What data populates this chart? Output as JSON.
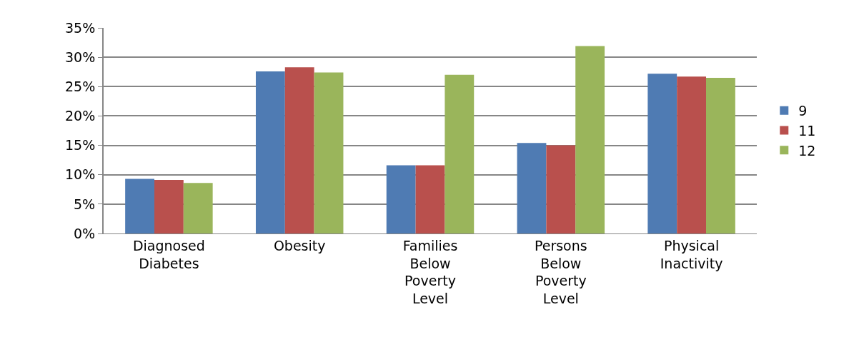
{
  "chart_data": {
    "type": "bar",
    "categories": [
      "Diagnosed Diabetes",
      "Obesity",
      "Families Below Poverty Level",
      "Persons Below Poverty Level",
      "Physical Inactivity"
    ],
    "series": [
      {
        "name": "9",
        "color": "#4f7bb3",
        "values": [
          9.3,
          27.6,
          11.6,
          15.4,
          27.2
        ]
      },
      {
        "name": "11",
        "color": "#b9504d",
        "values": [
          9.1,
          28.3,
          11.6,
          15.0,
          26.7
        ]
      },
      {
        "name": "12",
        "color": "#9ab55b",
        "values": [
          8.6,
          27.4,
          27.0,
          31.9,
          26.5
        ]
      }
    ],
    "ylim": [
      0,
      35
    ],
    "yticks": [
      {
        "value": 0,
        "label": "0%"
      },
      {
        "value": 5,
        "label": "5%"
      },
      {
        "value": 10,
        "label": "10%"
      },
      {
        "value": 15,
        "label": "15%"
      },
      {
        "value": 20,
        "label": "20%"
      },
      {
        "value": 25,
        "label": "25%"
      },
      {
        "value": 30,
        "label": "30%"
      },
      {
        "value": 35,
        "label": "35%"
      }
    ],
    "grid": "y",
    "legend": "right"
  }
}
